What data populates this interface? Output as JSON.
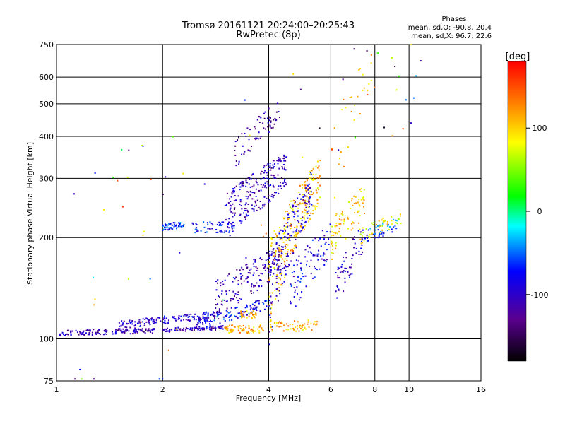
{
  "chart_data": {
    "type": "scatter",
    "title": "Tromsø 20161121 20:24:00–20:25:43",
    "subtitle": "RwPretec (8p)",
    "xlabel": "Frequency [MHz]",
    "ylabel": "Stationary phase Virtual Height [km]",
    "x_scale": "log",
    "y_scale": "log",
    "xlim": [
      1,
      16
    ],
    "ylim": [
      75,
      750
    ],
    "x_ticks": [
      "1",
      "2",
      "4",
      "6",
      "8",
      "10",
      "16"
    ],
    "y_ticks": [
      "75",
      "100",
      "200",
      "300",
      "400",
      "500",
      "600",
      "750"
    ],
    "grid": true,
    "colorbar": {
      "label": "[deg]",
      "range": [
        -180,
        180
      ],
      "ticks": [
        "100",
        "0",
        "-100"
      ],
      "colors": [
        "#000000",
        "#5a0090",
        "#0000ff",
        "#00ffff",
        "#00ff00",
        "#ffff00",
        "#ff8000",
        "#ff0000"
      ]
    },
    "stats": {
      "heading": "Phases",
      "o_line": "mean, sd,O: -90.8, 20.4",
      "x_line": "mean, sd,X:  96.7, 22.6"
    },
    "clusters": [
      {
        "f0": 1.02,
        "f1": 1.9,
        "h0": 104,
        "h1": 106,
        "spread": 2,
        "phase": -110,
        "n": 140
      },
      {
        "f0": 1.5,
        "f1": 2.8,
        "h0": 110,
        "h1": 118,
        "spread": 3,
        "phase": -95,
        "n": 140
      },
      {
        "f0": 2.0,
        "f1": 3.0,
        "h0": 106,
        "h1": 108,
        "spread": 1.5,
        "phase": -105,
        "n": 80
      },
      {
        "f0": 2.5,
        "f1": 4.0,
        "h0": 110,
        "h1": 128,
        "spread": 5,
        "phase": -80,
        "n": 110
      },
      {
        "f0": 2.0,
        "f1": 2.3,
        "h0": 215,
        "h1": 218,
        "spread": 5,
        "phase": -65,
        "n": 50
      },
      {
        "f0": 2.4,
        "f1": 3.2,
        "h0": 215,
        "h1": 215,
        "spread": 8,
        "phase": -75,
        "n": 60
      },
      {
        "f0": 2.8,
        "f1": 4.5,
        "h0": 130,
        "h1": 175,
        "spread": 18,
        "phase": -110,
        "n": 170
      },
      {
        "f0": 3.0,
        "f1": 4.5,
        "h0": 230,
        "h1": 320,
        "spread": 40,
        "phase": -105,
        "n": 230
      },
      {
        "f0": 3.2,
        "f1": 4.3,
        "h0": 350,
        "h1": 480,
        "spread": 40,
        "phase": -120,
        "n": 70
      },
      {
        "f0": 3.0,
        "f1": 3.9,
        "h0": 107,
        "h1": 107,
        "spread": 3,
        "phase": 110,
        "n": 70
      },
      {
        "f0": 3.3,
        "f1": 3.7,
        "h0": 118,
        "h1": 118,
        "spread": 3,
        "phase": 115,
        "n": 30
      },
      {
        "f0": 4.0,
        "f1": 5.5,
        "h0": 108,
        "h1": 110,
        "spread": 4,
        "phase": 110,
        "n": 60
      },
      {
        "f0": 4.0,
        "f1": 5.6,
        "h0": 150,
        "h1": 300,
        "spread": 45,
        "phase": 105,
        "n": 240
      },
      {
        "f0": 4.0,
        "f1": 5.3,
        "h0": 130,
        "h1": 280,
        "spread": 40,
        "phase": -100,
        "n": 160
      },
      {
        "f0": 4.6,
        "f1": 6.0,
        "h0": 140,
        "h1": 200,
        "spread": 25,
        "phase": -90,
        "n": 90
      },
      {
        "f0": 6.0,
        "f1": 7.5,
        "h0": 200,
        "h1": 260,
        "spread": 30,
        "phase": 100,
        "n": 80
      },
      {
        "f0": 6.2,
        "f1": 7.4,
        "h0": 140,
        "h1": 200,
        "spread": 20,
        "phase": -100,
        "n": 60
      },
      {
        "f0": 7.2,
        "f1": 9.5,
        "h0": 200,
        "h1": 230,
        "spread": 12,
        "phase": 90,
        "n": 50
      },
      {
        "f0": 7.5,
        "f1": 9.3,
        "h0": 200,
        "h1": 220,
        "spread": 10,
        "phase": -60,
        "n": 40
      },
      {
        "f0": 6.0,
        "f1": 8.0,
        "h0": 300,
        "h1": 650,
        "spread": 120,
        "phase": 100,
        "n": 30
      },
      {
        "f0": 1.1,
        "f1": 11.5,
        "h0": 90,
        "h1": 650,
        "spread": 200,
        "phase": 0,
        "n": 70
      }
    ]
  }
}
